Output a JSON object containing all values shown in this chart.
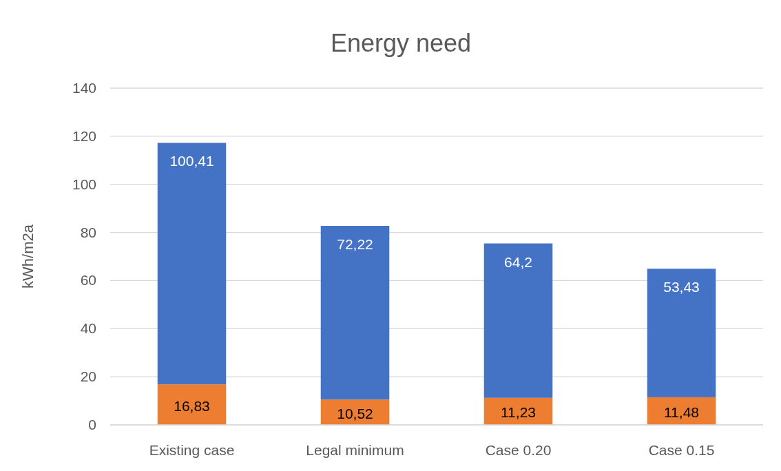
{
  "chart_data": {
    "type": "bar",
    "title": "Energy need",
    "ylabel": "kWh/m2a",
    "categories": [
      "Existing case",
      "Legal minimum",
      "Case 0.20",
      "Case 0.15"
    ],
    "stacked": true,
    "series": [
      {
        "color": "#ed7d31",
        "values": [
          16.83,
          10.52,
          11.23,
          11.48
        ],
        "value_labels": [
          "16,83",
          "10,52",
          "11,23",
          "11,48"
        ]
      },
      {
        "color": "#4472c4",
        "values": [
          100.41,
          72.22,
          64.2,
          53.43
        ],
        "value_labels": [
          "100,41",
          "72,22",
          "64,2",
          "53,43"
        ]
      }
    ],
    "ylim": [
      0,
      140
    ],
    "yticks": [
      0,
      20,
      40,
      60,
      80,
      100,
      120,
      140
    ],
    "grid": "y"
  }
}
